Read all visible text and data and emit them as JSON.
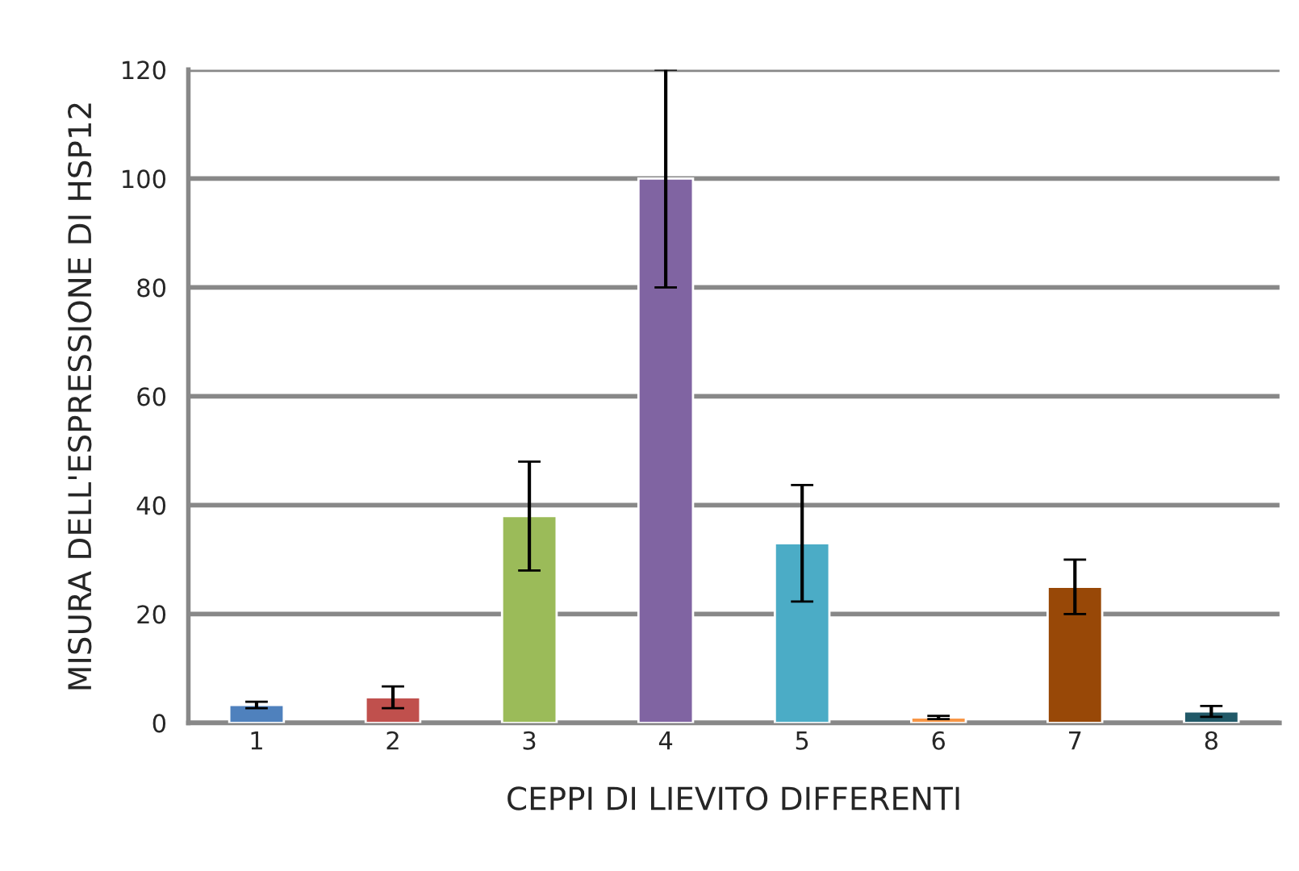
{
  "chart_data": {
    "type": "bar",
    "xlabel": "CEPPI DI LIEVITO DIFFERENTI",
    "ylabel": "MISURA DELL'ESPRESSIONE DI HSP12",
    "categories": [
      "1",
      "2",
      "3",
      "4",
      "5",
      "6",
      "7",
      "8"
    ],
    "values": [
      3.3,
      4.7,
      38,
      100,
      33,
      1,
      25,
      2.1
    ],
    "errors": [
      0.6,
      2,
      10,
      20,
      10.7,
      0.3,
      5,
      1
    ],
    "colors": [
      "#4f81bd",
      "#c0504d",
      "#9bbb59",
      "#8064a2",
      "#4bacc6",
      "#f79646",
      "#984807",
      "#215968"
    ],
    "ylim": [
      0,
      120
    ],
    "yticks": [
      0,
      20,
      40,
      60,
      80,
      100,
      120
    ],
    "grid": "y"
  }
}
